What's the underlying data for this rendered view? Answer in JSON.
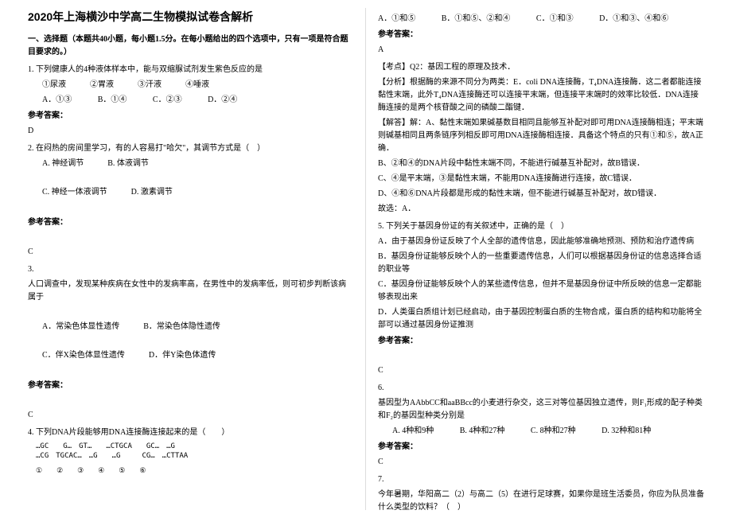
{
  "title": "2020年上海横沙中学高二生物模拟试卷含解析",
  "section1": {
    "header": "一、选择题（本题共40小题，每小题1.5分。在每小题给出的四个选项中，只有一项是符合题目要求的。）"
  },
  "q1": {
    "text": "1. 下列健康人的4种液体样本中，能与双缩脲试剂发生紫色反应的是",
    "options_line1": "①尿液　　　②胃液　　　③汗液　　　④唾液",
    "opt_a": "A．①③",
    "opt_b": "B．①④",
    "opt_c": "C．②③",
    "opt_d": "D．②④",
    "answer_label": "参考答案：",
    "answer": "D"
  },
  "q2": {
    "text": "2. 在闷热的房间里学习，有的人容易打\"哈欠\"，其调节方式是（　）",
    "opt_a": "A. 神经调节",
    "opt_b": "B. 体液调节",
    "opt_c": "C. 神经一体液调节",
    "opt_d": "D. 激素调节",
    "answer_label": "参考答案：",
    "answer": "C"
  },
  "q3": {
    "intro": "3.",
    "text1": "人口调查中，发现某种疾病在女性中的发病率高，在男性中的发病率低，则可初步判断该病属于",
    "opt_a": "A．常染色体显性遗传",
    "opt_b": "B．常染色体隐性遗传",
    "opt_c": "C．伴X染色体显性遗传",
    "opt_d": "D．伴Y染色体遗传",
    "answer_label": "参考答案：",
    "answer": "C"
  },
  "q4": {
    "text": "4. 下列DNA片段能够用DNA连接酶连接起来的是（　　）",
    "dna_line1": "…GC　　G…　GT…　　…CTGCA　　GC…　…G",
    "dna_line2": "…CG　TGCAC…　…G　　…G　　　CG…　…CTTAA",
    "circled": "①　　②　　③　　④　　⑤　　⑥"
  },
  "q4_options": {
    "opt_a": "A．①和⑤",
    "opt_b": "B．①和⑤、②和④",
    "opt_c": "C．①和③",
    "opt_d": "D．①和③、④和⑥",
    "answer_label": "参考答案：",
    "answer": "A"
  },
  "analysis": {
    "kaodian": "【考点】Q2：基因工程的原理及技术．",
    "fenxi": "【分析】根据酶的来源不同分为两类：E．coli DNA连接酶，T₄DNA连接酶．这二者都能连接黏性末端，此外T₄DNA连接酶还可以连接平末端，但连接平末端时的效率比较低．DNA连接酶连接的是两个核苷酸之间的磷酸二酯键．",
    "jieda_label": "【解答】解：A、黏性末端如果碱基数目相同且能够互补配对即可用DNA连接酶相连；平末端则碱基相同且两条链序列相反即可用DNA连接酶相连接．具备这个特点的只有①和⑤，故A正确．",
    "line_b": "B、②和④的DNA片段中黏性末端不同，不能进行碱基互补配对，故B错误．",
    "line_c": "C、④是平末端，③是黏性末端，不能用DNA连接酶进行连接，故C错误．",
    "line_d": "D、④和⑥DNA片段都是形成的黏性末端，但不能进行碱基互补配对，故D错误．",
    "guxuan": "故选：A．"
  },
  "q5": {
    "text": "5. 下列关于基因身份证的有关叙述中，正确的是（　）",
    "opt_a": "A．由于基因身份证反映了个人全部的遗传信息，因此能够准确地预测、预防和治疗遗传病",
    "opt_b": "B．基因身份证能够反映个人的一些重要遗传信息，人们可以根据基因身份证的信息选择合适的职业等",
    "opt_c": "C．基因身份证能够反映个人的某些遗传信息，但并不是基因身份证中所反映的信息一定都能够表现出来",
    "opt_d": "D．人类蛋白质组计划已经启动，由于基因控制蛋白质的生物合成，蛋白质的结构和功能将全部可以通过基因身份证推测",
    "answer_label": "参考答案：",
    "answer": "C"
  },
  "q6": {
    "intro": "6.",
    "text": "基因型为AAbbCC和aaBBcc的小麦进行杂交，这三对等位基因独立遗传，则F₁形成的配子种类和F₂的基因型种类分别是",
    "opt_a": "A. 4种和9种",
    "opt_b": "B. 4种和27种",
    "opt_c": "C. 8种和27种",
    "opt_d": "D. 32种和81种",
    "answer_label": "参考答案：",
    "answer": "C"
  },
  "q7": {
    "intro": "7.",
    "text": "今年暑期，华阳高二（2）与高二（5）在进行足球赛，如果你是班生活委员，你应为队员准备什么类型的饮料？（　）"
  }
}
